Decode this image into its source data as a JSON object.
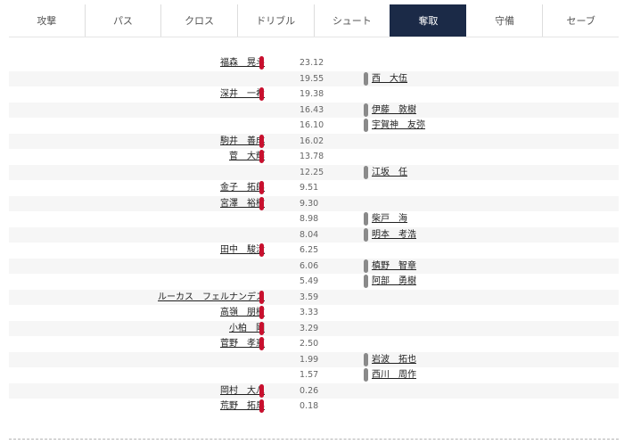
{
  "tabs": [
    {
      "label": "攻撃",
      "active": false
    },
    {
      "label": "パス",
      "active": false
    },
    {
      "label": "クロス",
      "active": false
    },
    {
      "label": "ドリブル",
      "active": false
    },
    {
      "label": "シュート",
      "active": false
    },
    {
      "label": "奪取",
      "active": true
    },
    {
      "label": "守備",
      "active": false
    },
    {
      "label": "セーブ",
      "active": false
    }
  ],
  "colors": {
    "active_tab": "#1b2a47",
    "left_team": "#c8102e",
    "right_team": "#8a8a8a"
  },
  "rows": [
    {
      "side": "left",
      "name": "福森　晃斗",
      "value": "23.12"
    },
    {
      "side": "right",
      "name": "西　大伍",
      "value": "19.55"
    },
    {
      "side": "left",
      "name": "深井　一希",
      "value": "19.38"
    },
    {
      "side": "right",
      "name": "伊藤　敦樹",
      "value": "16.43"
    },
    {
      "side": "right",
      "name": "宇賀神　友弥",
      "value": "16.10"
    },
    {
      "side": "left",
      "name": "駒井　善成",
      "value": "16.02"
    },
    {
      "side": "left",
      "name": "菅　大輝",
      "value": "13.78"
    },
    {
      "side": "right",
      "name": "江坂　任",
      "value": "12.25"
    },
    {
      "side": "left",
      "name": "金子　拓郎",
      "value": "9.51"
    },
    {
      "side": "left",
      "name": "宮澤　裕樹",
      "value": "9.30"
    },
    {
      "side": "right",
      "name": "柴戸　海",
      "value": "8.98"
    },
    {
      "side": "right",
      "name": "明本　考浩",
      "value": "8.04"
    },
    {
      "side": "left",
      "name": "田中　駿汰",
      "value": "6.25"
    },
    {
      "side": "right",
      "name": "槙野　智章",
      "value": "6.06"
    },
    {
      "side": "right",
      "name": "阿部　勇樹",
      "value": "5.49"
    },
    {
      "side": "left",
      "name": "ルーカス　フェルナンデス",
      "value": "3.59"
    },
    {
      "side": "left",
      "name": "高嶺　朋樹",
      "value": "3.33"
    },
    {
      "side": "left",
      "name": "小柏　剛",
      "value": "3.29"
    },
    {
      "side": "left",
      "name": "菅野　孝憲",
      "value": "2.50"
    },
    {
      "side": "right",
      "name": "岩波　拓也",
      "value": "1.99"
    },
    {
      "side": "right",
      "name": "西川　周作",
      "value": "1.57"
    },
    {
      "side": "left",
      "name": "岡村　大八",
      "value": "0.26"
    },
    {
      "side": "left",
      "name": "荒野　拓馬",
      "value": "0.18"
    }
  ]
}
